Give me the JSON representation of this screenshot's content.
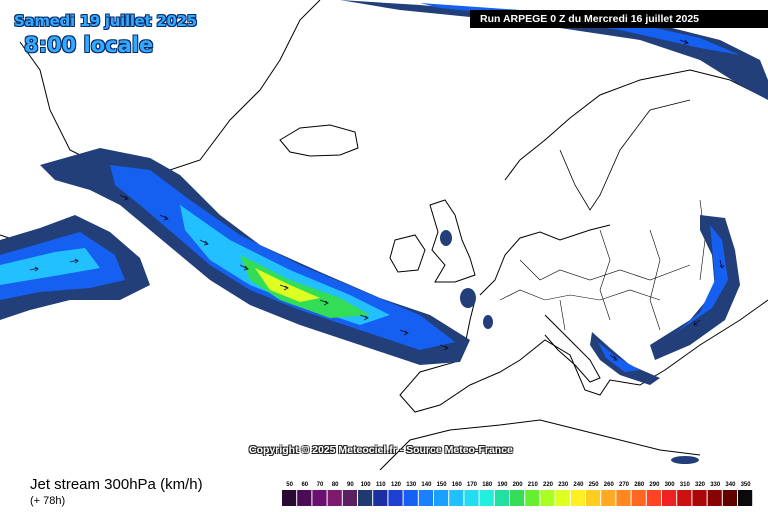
{
  "header": {
    "date": "Samedi 19 juillet 2025",
    "local_time": "8:00 locale"
  },
  "run": {
    "label": "Run ARPEGE 0 Z du Mercredi 16 juillet 2025"
  },
  "copyright": "Copyright © 2025 Meteociel.fr - Source Meteo-France",
  "product": {
    "title": "Jet stream 300hPa (km/h)",
    "lead": "(+ 78h)"
  },
  "legend": {
    "values": [
      "50",
      "60",
      "70",
      "80",
      "90",
      "100",
      "110",
      "120",
      "130",
      "140",
      "150",
      "160",
      "170",
      "180",
      "190",
      "200",
      "210",
      "220",
      "230",
      "240",
      "250",
      "260",
      "270",
      "280",
      "290",
      "300",
      "310",
      "320",
      "330",
      "340",
      "350"
    ],
    "colors": [
      "#2a0a33",
      "#4b0b55",
      "#6a1070",
      "#7e1a6e",
      "#5a2060",
      "#1e3a6e",
      "#1c2fa0",
      "#1f3fd0",
      "#1560f0",
      "#1a80ff",
      "#1aa0ff",
      "#22c0ff",
      "#22ddf0",
      "#22eedd",
      "#22e0a0",
      "#33dd55",
      "#66ee33",
      "#aaff22",
      "#ddff22",
      "#ffee22",
      "#ffcc22",
      "#ffaa22",
      "#ff8822",
      "#ff6622",
      "#ff4422",
      "#ee2222",
      "#cc1111",
      "#aa0808",
      "#880404",
      "#600000",
      "#0a0a0a"
    ]
  },
  "colors": {
    "land": "#ffffff",
    "sea": "#ffffff",
    "coast": "#000000"
  }
}
